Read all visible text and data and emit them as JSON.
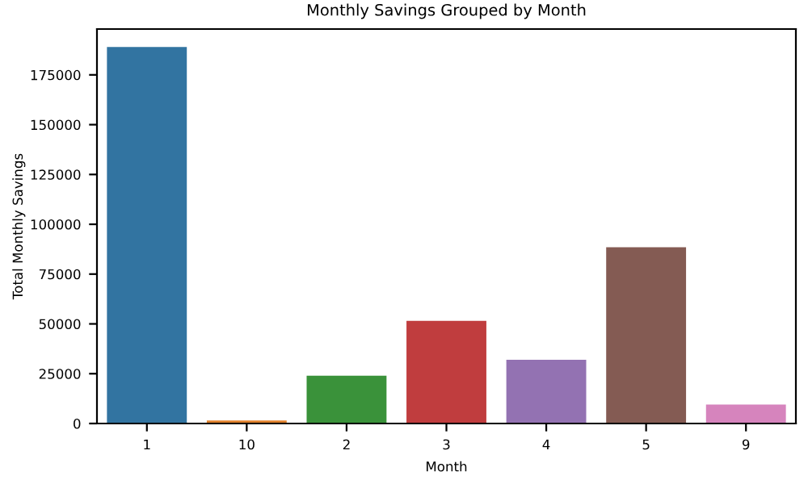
{
  "chart_data": {
    "type": "bar",
    "title": "Monthly Savings Grouped by Month",
    "xlabel": "Month",
    "ylabel": "Total Monthly Savings",
    "categories": [
      "1",
      "10",
      "2",
      "3",
      "4",
      "5",
      "9"
    ],
    "values": [
      189000,
      1500,
      24000,
      51500,
      32000,
      88500,
      9500
    ],
    "colors": [
      "#3274a1",
      "#e1812c",
      "#3a923a",
      "#c03d3e",
      "#9372b2",
      "#845b53",
      "#d684bd"
    ],
    "ylim": [
      0,
      198000
    ],
    "yticks": [
      0,
      25000,
      50000,
      75000,
      100000,
      125000,
      150000,
      175000
    ],
    "grid": false
  }
}
